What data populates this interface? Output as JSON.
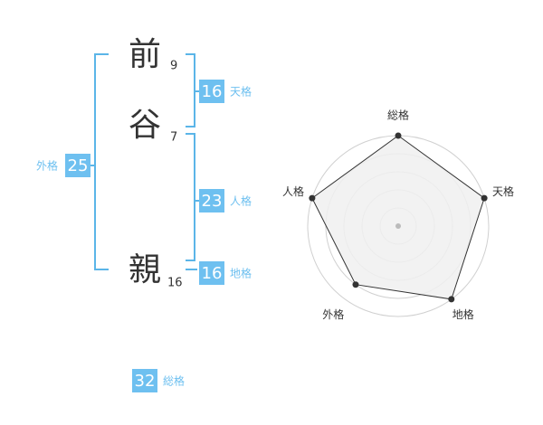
{
  "name": {
    "characters": [
      {
        "char": "前",
        "strokes": 9
      },
      {
        "char": "谷",
        "strokes": 7
      },
      {
        "char": "親",
        "strokes": 16
      }
    ]
  },
  "fortunes": {
    "tenkaku": {
      "label": "天格",
      "value": 16
    },
    "jinkaku": {
      "label": "人格",
      "value": 23
    },
    "chikaku": {
      "label": "地格",
      "value": 16
    },
    "gaikaku": {
      "label": "外格",
      "value": 25
    },
    "soukaku": {
      "label": "総格",
      "value": 32
    }
  },
  "chart_data": {
    "type": "radar",
    "categories": [
      "総格",
      "天格",
      "地格",
      "外格",
      "人格"
    ],
    "values": [
      5,
      5,
      5,
      4,
      5
    ],
    "rlim": [
      0,
      5
    ],
    "rticks": [
      1,
      2,
      3,
      4,
      5
    ],
    "grid": true,
    "color": "#333333",
    "fill": "#f0f0f0"
  }
}
